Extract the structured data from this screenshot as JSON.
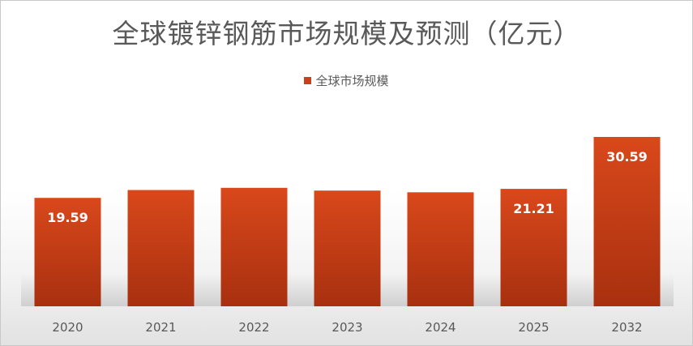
{
  "chart_data": {
    "type": "bar",
    "title": "全球镀锌钢筋市场规模及预测（亿元）",
    "categories": [
      "2020",
      "2021",
      "2022",
      "2023",
      "2024",
      "2025",
      "2032"
    ],
    "series": [
      {
        "name": "全球市场规模",
        "values": [
          19.59,
          21.0,
          21.4,
          20.9,
          20.6,
          21.21,
          30.59
        ],
        "data_labels": [
          "19.59",
          "",
          "",
          "",
          "",
          "21.21",
          "30.59"
        ]
      }
    ],
    "ylim": [
      0,
      30.59
    ],
    "grid": false,
    "legend_position": "top",
    "colors": {
      "bar_top": "#d9481b",
      "bar_bottom": "#a8300f",
      "axis_text": "#595959",
      "label_text": "#ffffff"
    }
  }
}
